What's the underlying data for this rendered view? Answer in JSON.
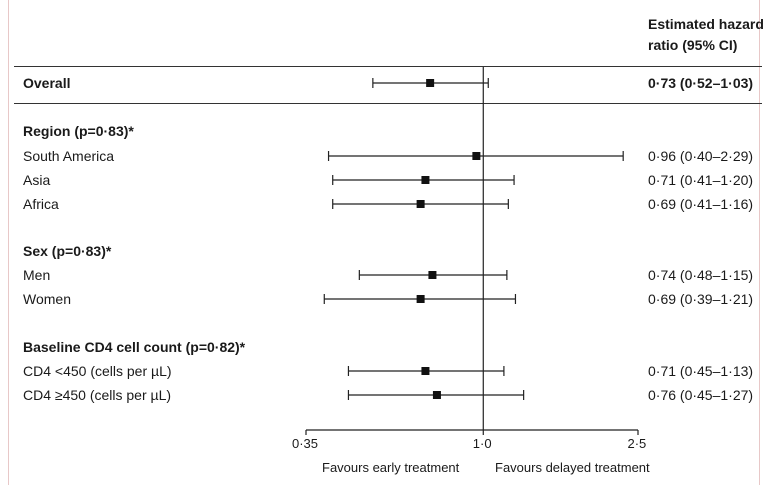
{
  "header": {
    "line1": "Estimated hazard",
    "line2": "ratio (95% CI)"
  },
  "rows": [
    {
      "label": "Overall",
      "bold": true,
      "est": 0.73,
      "lo": 0.52,
      "hi": 1.03,
      "text": "0·73 (0·52–1·03)"
    },
    {
      "label": "Region (p=0·83)*",
      "bold": true,
      "heading": true
    },
    {
      "label": "South America",
      "est": 0.96,
      "lo": 0.4,
      "hi": 2.29,
      "text": "0·96 (0·40–2·29)"
    },
    {
      "label": "Asia",
      "est": 0.71,
      "lo": 0.41,
      "hi": 1.2,
      "text": "0·71 (0·41–1·20)"
    },
    {
      "label": "Africa",
      "est": 0.69,
      "lo": 0.41,
      "hi": 1.16,
      "text": "0·69 (0·41–1·16)"
    },
    {
      "label": "Sex (p=0·83)*",
      "bold": true,
      "heading": true
    },
    {
      "label": "Men",
      "est": 0.74,
      "lo": 0.48,
      "hi": 1.15,
      "text": "0·74 (0·48–1·15)"
    },
    {
      "label": "Women",
      "est": 0.69,
      "lo": 0.39,
      "hi": 1.21,
      "text": "0·69 (0·39–1·21)"
    },
    {
      "label": "Baseline CD4 cell count (p=0·82)*",
      "bold": true,
      "heading": true
    },
    {
      "label": "CD4 <450 (cells per µL)",
      "est": 0.71,
      "lo": 0.45,
      "hi": 1.13,
      "text": "0·71 (0·45–1·13)"
    },
    {
      "label": "CD4 ≥450 (cells per µL)",
      "est": 0.76,
      "lo": 0.45,
      "hi": 1.27,
      "text": "0·76 (0·45–1·27)"
    }
  ],
  "chart_data": {
    "type": "forest",
    "scale": "log",
    "reference_line": 1.0,
    "xlim": [
      0.35,
      2.5
    ],
    "ticks": [
      {
        "value": 0.35,
        "label": "0·35"
      },
      {
        "value": 1.0,
        "label": "1·0"
      },
      {
        "value": 2.5,
        "label": "2·5"
      }
    ],
    "favours_left": "Favours early treatment",
    "favours_right": "Favours delayed treatment"
  }
}
